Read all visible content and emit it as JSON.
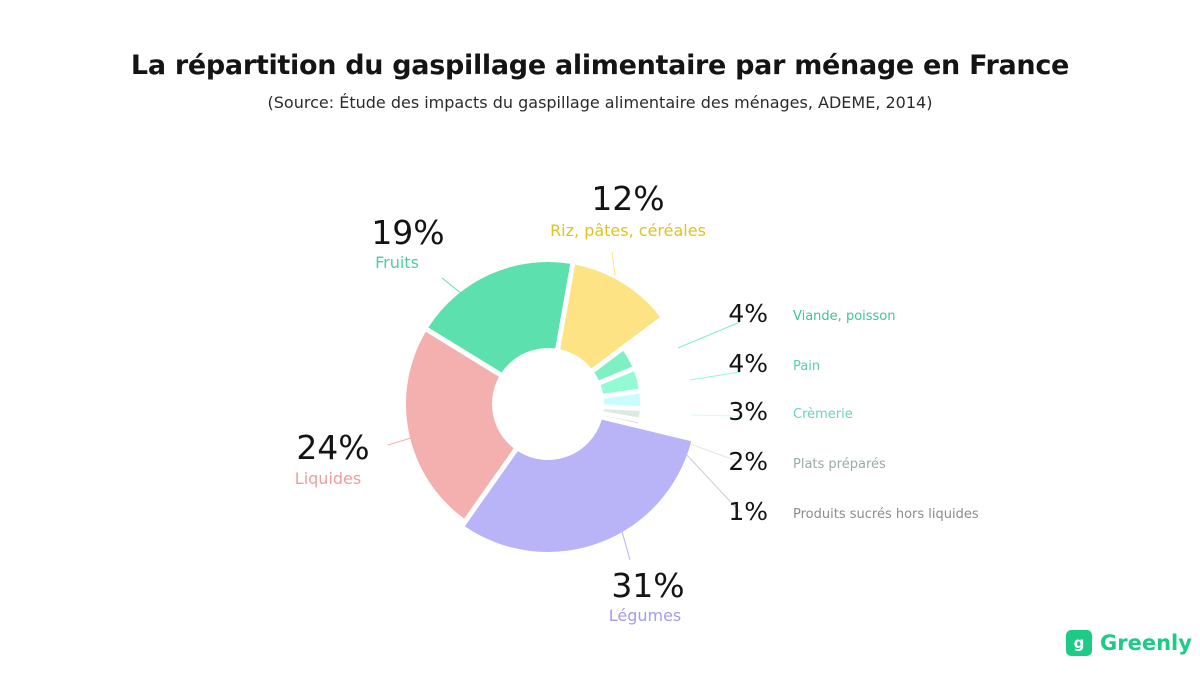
{
  "header": {
    "title": "La répartition du gaspillage alimentaire par ménage en France",
    "subtitle": "(Source:  Étude des impacts du gaspillage alimentaire des ménages, ADEME, 2014)"
  },
  "brand": {
    "logo_glyph": "g",
    "name": "Greenly",
    "color": "#1ecb86"
  },
  "chart_data": {
    "type": "pie",
    "variant": "donut",
    "unit": "%",
    "legend": "none (labels placed next to slices)",
    "slices": [
      {
        "label": "Riz, pâtes, céréales",
        "value": 12,
        "value_label": "12%",
        "color": "#fde384",
        "label_color": "#e2c21f"
      },
      {
        "label": "Viande, poisson",
        "value": 4,
        "value_label": "4%",
        "color": "#7ff0c4",
        "label_color": "#3fc397"
      },
      {
        "label": "Pain",
        "value": 4,
        "value_label": "4%",
        "color": "#92fbd3",
        "label_color": "#4fd3a3"
      },
      {
        "label": "Crèmerie",
        "value": 3,
        "value_label": "3%",
        "color": "#c9fdfb",
        "label_color": "#6ecfc3"
      },
      {
        "label": "Plats préparés",
        "value": 2,
        "value_label": "2%",
        "color": "#dde9e3",
        "label_color": "#9aaca4"
      },
      {
        "label": "Produits sucrés hors liquides",
        "value": 1,
        "value_label": "1%",
        "color": "#c8d1cc",
        "label_color": "#8c8c8c"
      },
      {
        "label": "Légumes",
        "value": 31,
        "value_label": "31%",
        "color": "#b9b3f8",
        "label_color": "#a39cf0"
      },
      {
        "label": "Liquides",
        "value": 24,
        "value_label": "24%",
        "color": "#f4afaf",
        "label_color": "#ef9e9e"
      },
      {
        "label": "Fruits",
        "value": 19,
        "value_label": "19%",
        "color": "#5ce0ad",
        "label_color": "#4ccf9c"
      }
    ]
  }
}
